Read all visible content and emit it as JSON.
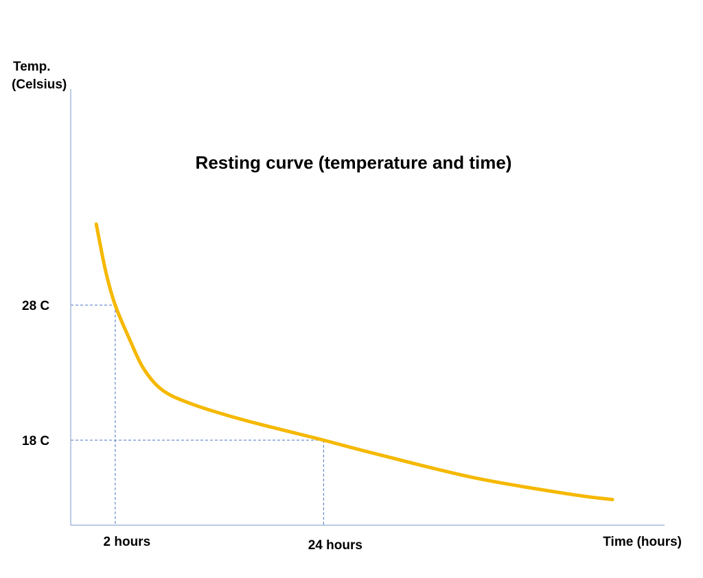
{
  "chart_data": {
    "type": "line",
    "title": "Resting curve (temperature and time)",
    "ylabel_line1": "Temp.",
    "ylabel_line2": "(Celsius)",
    "xlabel": "Time (hours)",
    "y_ticks": [
      {
        "label": "28 C",
        "value": 28
      },
      {
        "label": "18 C",
        "value": 18
      }
    ],
    "x_ticks": [
      {
        "label": "2 hours",
        "value": 2
      },
      {
        "label": "24 hours",
        "value": 24
      }
    ],
    "reference_points": [
      {
        "x": 2,
        "y": 28
      },
      {
        "x": 24,
        "y": 18
      }
    ],
    "xlim": [
      -2.7,
      60
    ],
    "ylim": [
      11.7,
      44
    ],
    "series": [
      {
        "values": [
          {
            "x": 0.0,
            "y": 34.0
          },
          {
            "x": 1.0,
            "y": 30.5
          },
          {
            "x": 2.0,
            "y": 28.0
          },
          {
            "x": 3.5,
            "y": 25.5
          },
          {
            "x": 5.0,
            "y": 23.3
          },
          {
            "x": 7.0,
            "y": 21.7
          },
          {
            "x": 10.0,
            "y": 20.7
          },
          {
            "x": 15.0,
            "y": 19.6
          },
          {
            "x": 20.0,
            "y": 18.7
          },
          {
            "x": 24.0,
            "y": 18.0
          },
          {
            "x": 30.0,
            "y": 16.9
          },
          {
            "x": 40.0,
            "y": 15.2
          },
          {
            "x": 50.0,
            "y": 14.0
          },
          {
            "x": 54.5,
            "y": 13.6
          }
        ]
      }
    ],
    "colors": {
      "curve": "#F5B800",
      "axis": "#8FA9D4",
      "guide": "#4472C4"
    },
    "grid": false,
    "legend": "none"
  }
}
